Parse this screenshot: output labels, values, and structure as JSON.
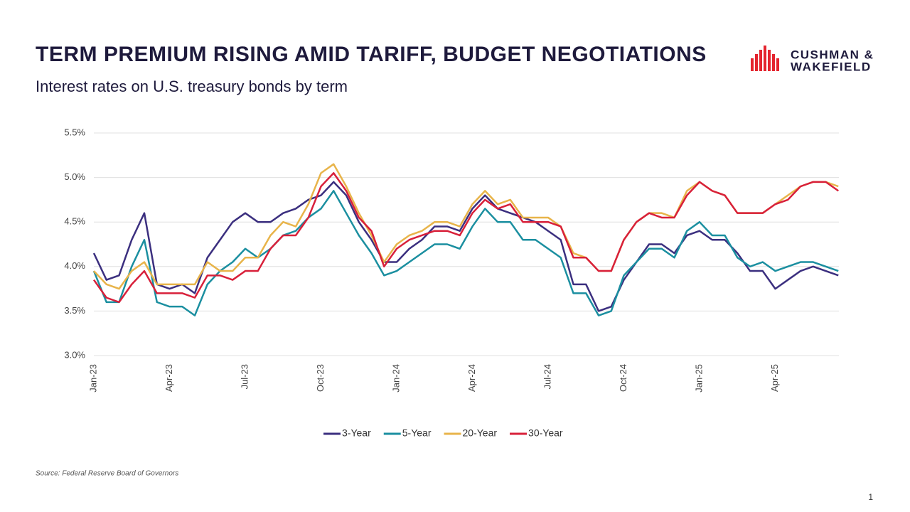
{
  "logo": [
    "CUSHMAN &",
    "WAKEFIELD"
  ],
  "page_number": 1,
  "chart_data": {
    "type": "line",
    "title": "TERM PREMIUM RISING AMID TARIFF, BUDGET NEGOTIATIONS",
    "subtitle": "Interest rates on U.S. treasury bonds by term",
    "source": "Source: Federal Reserve Board of Governors",
    "categories": [
      "Jan-23",
      null,
      null,
      null,
      null,
      null,
      "Apr-23",
      null,
      null,
      null,
      null,
      null,
      "Jul-23",
      null,
      null,
      null,
      null,
      null,
      "Oct-23",
      null,
      null,
      null,
      null,
      null,
      "Jan-24",
      null,
      null,
      null,
      null,
      null,
      "Apr-24",
      null,
      null,
      null,
      null,
      null,
      "Jul-24",
      null,
      null,
      null,
      null,
      null,
      "Oct-24",
      null,
      null,
      null,
      null,
      null,
      "Jan-25",
      null,
      null,
      null,
      null,
      null,
      "Apr-25",
      null,
      null,
      null,
      null,
      null
    ],
    "series": [
      {
        "name": "3-Year",
        "color": "#3b2f7f",
        "values": [
          4.15,
          3.85,
          3.9,
          4.3,
          4.6,
          3.8,
          3.75,
          3.8,
          3.7,
          4.1,
          4.3,
          4.5,
          4.6,
          4.5,
          4.5,
          4.6,
          4.65,
          4.75,
          4.8,
          4.95,
          4.8,
          4.5,
          4.3,
          4.05,
          4.05,
          4.2,
          4.3,
          4.45,
          4.45,
          4.4,
          4.65,
          4.8,
          4.65,
          4.6,
          4.55,
          4.5,
          4.4,
          4.3,
          3.8,
          3.8,
          3.5,
          3.55,
          3.85,
          4.05,
          4.25,
          4.25,
          4.15,
          4.35,
          4.4,
          4.3,
          4.3,
          4.15,
          3.95,
          3.95,
          3.75,
          3.85,
          3.95,
          4.0,
          3.95,
          3.9
        ]
      },
      {
        "name": "5-Year",
        "color": "#1b8fa0",
        "values": [
          3.95,
          3.6,
          3.6,
          4.0,
          4.3,
          3.6,
          3.55,
          3.55,
          3.45,
          3.8,
          3.95,
          4.05,
          4.2,
          4.1,
          4.2,
          4.35,
          4.4,
          4.55,
          4.65,
          4.85,
          4.6,
          4.35,
          4.15,
          3.9,
          3.95,
          4.05,
          4.15,
          4.25,
          4.25,
          4.2,
          4.45,
          4.65,
          4.5,
          4.5,
          4.3,
          4.3,
          4.2,
          4.1,
          3.7,
          3.7,
          3.45,
          3.5,
          3.9,
          4.05,
          4.2,
          4.2,
          4.1,
          4.4,
          4.5,
          4.35,
          4.35,
          4.1,
          4.0,
          4.05,
          3.95,
          4.0,
          4.05,
          4.05,
          4.0,
          3.95
        ]
      },
      {
        "name": "20-Year",
        "color": "#e8b44a",
        "values": [
          3.95,
          3.8,
          3.75,
          3.95,
          4.05,
          3.8,
          3.8,
          3.8,
          3.8,
          4.05,
          3.95,
          3.95,
          4.1,
          4.1,
          4.35,
          4.5,
          4.45,
          4.7,
          5.05,
          5.15,
          4.9,
          4.6,
          4.35,
          4.05,
          4.25,
          4.35,
          4.4,
          4.5,
          4.5,
          4.45,
          4.7,
          4.85,
          4.7,
          4.75,
          4.55,
          4.55,
          4.55,
          4.45,
          4.15,
          4.1,
          3.95,
          3.95,
          4.3,
          4.5,
          4.6,
          4.6,
          4.55,
          4.85,
          4.95,
          4.85,
          4.8,
          4.6,
          4.6,
          4.6,
          4.7,
          4.8,
          4.9,
          4.95,
          4.95,
          4.9
        ]
      },
      {
        "name": "30-Year",
        "color": "#d8203a",
        "values": [
          3.85,
          3.65,
          3.6,
          3.8,
          3.95,
          3.7,
          3.7,
          3.7,
          3.65,
          3.9,
          3.9,
          3.85,
          3.95,
          3.95,
          4.2,
          4.35,
          4.35,
          4.55,
          4.9,
          5.05,
          4.85,
          4.55,
          4.4,
          4.0,
          4.2,
          4.3,
          4.35,
          4.4,
          4.4,
          4.35,
          4.6,
          4.75,
          4.65,
          4.7,
          4.5,
          4.5,
          4.5,
          4.45,
          4.1,
          4.1,
          3.95,
          3.95,
          4.3,
          4.5,
          4.6,
          4.55,
          4.55,
          4.8,
          4.95,
          4.85,
          4.8,
          4.6,
          4.6,
          4.6,
          4.7,
          4.75,
          4.9,
          4.95,
          4.95,
          4.85
        ]
      }
    ],
    "ylim": [
      3.0,
      5.5
    ],
    "yticks": [
      {
        "value": 3.0,
        "label": "3.0%"
      },
      {
        "value": 3.5,
        "label": "3.5%"
      },
      {
        "value": 4.0,
        "label": "4.0%"
      },
      {
        "value": 4.5,
        "label": "4.5%"
      },
      {
        "value": 5.0,
        "label": "5.0%"
      },
      {
        "value": 5.5,
        "label": "5.5%"
      }
    ],
    "grid": true,
    "legend": "bottom"
  }
}
